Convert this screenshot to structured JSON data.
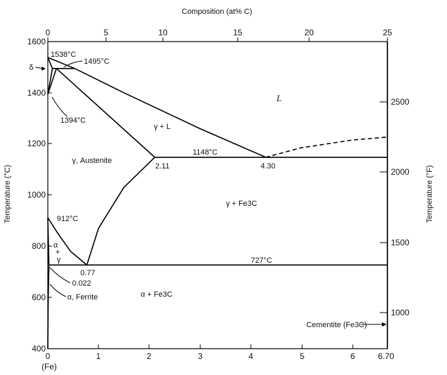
{
  "title_top": "Composition (at% C)",
  "ylabel_left": "Temperature (°C)",
  "ylabel_right": "Temperature (°F)",
  "x_bottom_ticks": [
    "0",
    "1",
    "2",
    "3",
    "4",
    "5",
    "6",
    "6.70"
  ],
  "x_bottom_sub": "(Fe)",
  "x_top_ticks": [
    "0",
    "5",
    "10",
    "15",
    "20",
    "25"
  ],
  "y_left_ticks": [
    "400",
    "600",
    "800",
    "1000",
    "1200",
    "1400",
    "1600"
  ],
  "y_right_ticks": [
    "1000",
    "1500",
    "2000",
    "2500"
  ],
  "regions": {
    "liquid": "L",
    "gamma_liquid": "γ + L",
    "austenite": "γ, Austenite",
    "gamma_fe3c": "γ + Fe3C",
    "alpha_fe3c": "α + Fe3C",
    "alpha": "α",
    "plus": "+",
    "gamma": "γ",
    "ferrite": "α, Ferrite",
    "delta": "δ",
    "cementite": "Cementite (Fe3C)"
  },
  "annotations": {
    "t1538": "1538°C",
    "t1495": "1495°C",
    "t1394": "1394°C",
    "t1148": "1148°C",
    "t912": "912°C",
    "t727": "727°C",
    "c211": "2.11",
    "c430": "4.30",
    "c077": "0.77",
    "c0022": "0.022"
  },
  "chart_data": {
    "type": "phase-diagram",
    "xlabel_bottom": "",
    "xlim": [
      0,
      6.7
    ],
    "ylim": [
      400,
      1600
    ],
    "boundaries": [
      {
        "points": [
          [
            0,
            1538
          ],
          [
            0.09,
            1495
          ]
        ]
      },
      {
        "points": [
          [
            0,
            1538
          ],
          [
            0.53,
            1495
          ],
          [
            1.5,
            1400
          ],
          [
            3.0,
            1260
          ],
          [
            4.3,
            1148
          ]
        ]
      },
      {
        "points": [
          [
            0,
            1394
          ],
          [
            0.09,
            1495
          ]
        ]
      },
      {
        "points": [
          [
            0,
            1394
          ],
          [
            0.17,
            1495
          ]
        ]
      },
      {
        "points": [
          [
            0.17,
            1495
          ],
          [
            2.11,
            1148
          ]
        ]
      },
      {
        "points": [
          [
            0.09,
            1495
          ],
          [
            0.53,
            1495
          ]
        ]
      },
      {
        "points": [
          [
            2.11,
            1148
          ],
          [
            6.7,
            1148
          ]
        ]
      },
      {
        "points": [
          [
            2.11,
            1148
          ],
          [
            1.5,
            1030
          ],
          [
            1.0,
            870
          ],
          [
            0.77,
            727
          ]
        ]
      },
      {
        "points": [
          [
            0,
            912
          ],
          [
            0.2,
            850
          ],
          [
            0.45,
            780
          ],
          [
            0.77,
            727
          ]
        ]
      },
      {
        "points": [
          [
            0,
            912
          ],
          [
            0.022,
            727
          ]
        ]
      },
      {
        "points": [
          [
            0.022,
            727
          ],
          [
            0.008,
            600
          ],
          [
            0,
            400
          ]
        ]
      },
      {
        "points": [
          [
            0.022,
            727
          ],
          [
            6.7,
            727
          ]
        ]
      },
      {
        "points": [
          [
            6.7,
            400
          ],
          [
            6.7,
            1600
          ]
        ]
      }
    ],
    "dashed": [
      {
        "points": [
          [
            4.3,
            1148
          ],
          [
            5.0,
            1185
          ],
          [
            6.0,
            1215
          ],
          [
            6.7,
            1227
          ]
        ]
      }
    ],
    "key_points": [
      {
        "label": "1538°C",
        "x": 0,
        "y": 1538
      },
      {
        "label": "1495°C",
        "x": 0.17,
        "y": 1495
      },
      {
        "label": "1394°C",
        "x": 0,
        "y": 1394
      },
      {
        "label": "1148°C",
        "x": 2.11,
        "y": 1148
      },
      {
        "label": "2.11",
        "x": 2.11,
        "y": 1148
      },
      {
        "label": "4.30",
        "x": 4.3,
        "y": 1148
      },
      {
        "label": "912°C",
        "x": 0,
        "y": 912
      },
      {
        "label": "727°C",
        "x": 0.77,
        "y": 727
      },
      {
        "label": "0.77",
        "x": 0.77,
        "y": 727
      },
      {
        "label": "0.022",
        "x": 0.022,
        "y": 727
      }
    ]
  }
}
